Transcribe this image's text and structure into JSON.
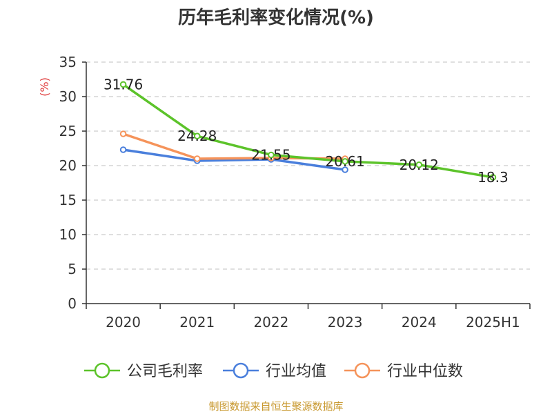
{
  "chart_data": {
    "type": "line",
    "title": "历年毛利率变化情况(%)",
    "unit_label": "(%)",
    "categories": [
      "2020",
      "2021",
      "2022",
      "2023",
      "2024",
      "2025H1"
    ],
    "ylim": [
      0,
      35
    ],
    "yticks": [
      "0",
      "5",
      "10",
      "15",
      "20",
      "25",
      "30",
      "35"
    ],
    "grid": true,
    "legend_position": "bottom",
    "series": [
      {
        "name": "公司毛利率",
        "color": "#5cc32a",
        "values": [
          31.76,
          24.28,
          21.55,
          20.61,
          20.12,
          18.3
        ],
        "labels": [
          "31.76",
          "24.28",
          "21.55",
          "20.61",
          "20.12",
          "18.3"
        ]
      },
      {
        "name": "行业均值",
        "color": "#4a7fdc",
        "values": [
          22.3,
          20.7,
          20.9,
          19.4,
          null,
          null
        ]
      },
      {
        "name": "行业中位数",
        "color": "#f5935a",
        "values": [
          24.6,
          21.0,
          21.1,
          21.0,
          null,
          null
        ]
      }
    ],
    "source": "制图数据来自恒生聚源数据库"
  }
}
